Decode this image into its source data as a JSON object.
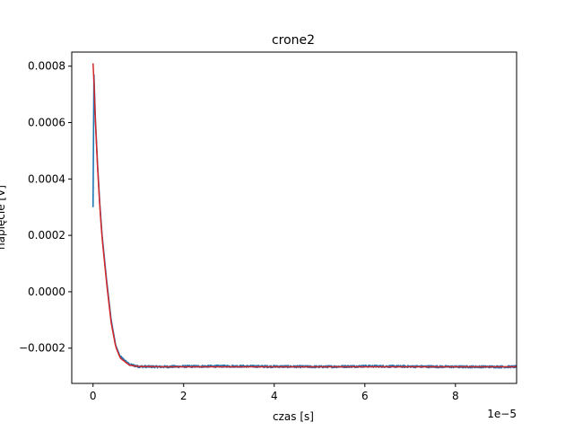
{
  "chart_data": {
    "type": "line",
    "title": "crone2",
    "xlabel": "czas [s]",
    "ylabel": "napięcie [V]",
    "x_offset_label": "1e−5",
    "xlim": [
      -0.47,
      9.35
    ],
    "ylim": [
      -0.000325,
      0.00085
    ],
    "x_tick_values": [
      0,
      2,
      4,
      6,
      8
    ],
    "x_tick_labels": [
      "0",
      "2",
      "4",
      "6",
      "8"
    ],
    "y_tick_values": [
      0.0008,
      0.0006,
      0.0004,
      0.0002,
      0.0,
      -0.0002
    ],
    "y_tick_labels": [
      "0.0008",
      "0.0006",
      "0.0004",
      "0.0002",
      "0.0000",
      "−0.0002"
    ],
    "series": [
      {
        "color": "#1f77b4",
        "x": [
          0,
          0.02,
          0.05,
          0.1,
          0.15,
          0.2,
          0.3,
          0.4,
          0.5,
          0.6,
          0.8,
          1.0,
          1.5,
          2,
          3,
          4,
          5,
          6,
          7,
          8,
          9,
          9.35
        ],
        "y": [
          0.0003,
          0.00077,
          0.00062,
          0.00045,
          0.00031,
          0.0002,
          4e-05,
          -0.0001,
          -0.00019,
          -0.00023,
          -0.000258,
          -0.000265,
          -0.000266,
          -0.000265,
          -0.000264,
          -0.000265,
          -0.000266,
          -0.000264,
          -0.000265,
          -0.000266,
          -0.000266,
          -0.000266
        ],
        "noise": 4e-06
      },
      {
        "color": "#d62728",
        "x": [
          0,
          0.02,
          0.05,
          0.1,
          0.15,
          0.2,
          0.3,
          0.4,
          0.5,
          0.6,
          0.8,
          1.0,
          1.5,
          2,
          3,
          4,
          5,
          6,
          7,
          8,
          9,
          9.35
        ],
        "y": [
          0.00081,
          0.00075,
          0.00061,
          0.00044,
          0.0003,
          0.00019,
          3e-05,
          -0.00011,
          -0.000195,
          -0.000235,
          -0.00026,
          -0.000265,
          -0.000266,
          -0.000266,
          -0.000266,
          -0.000266,
          -0.000266,
          -0.000266,
          -0.000266,
          -0.000266,
          -0.000266,
          -0.000266
        ]
      }
    ],
    "grid": false,
    "legend": "none"
  }
}
